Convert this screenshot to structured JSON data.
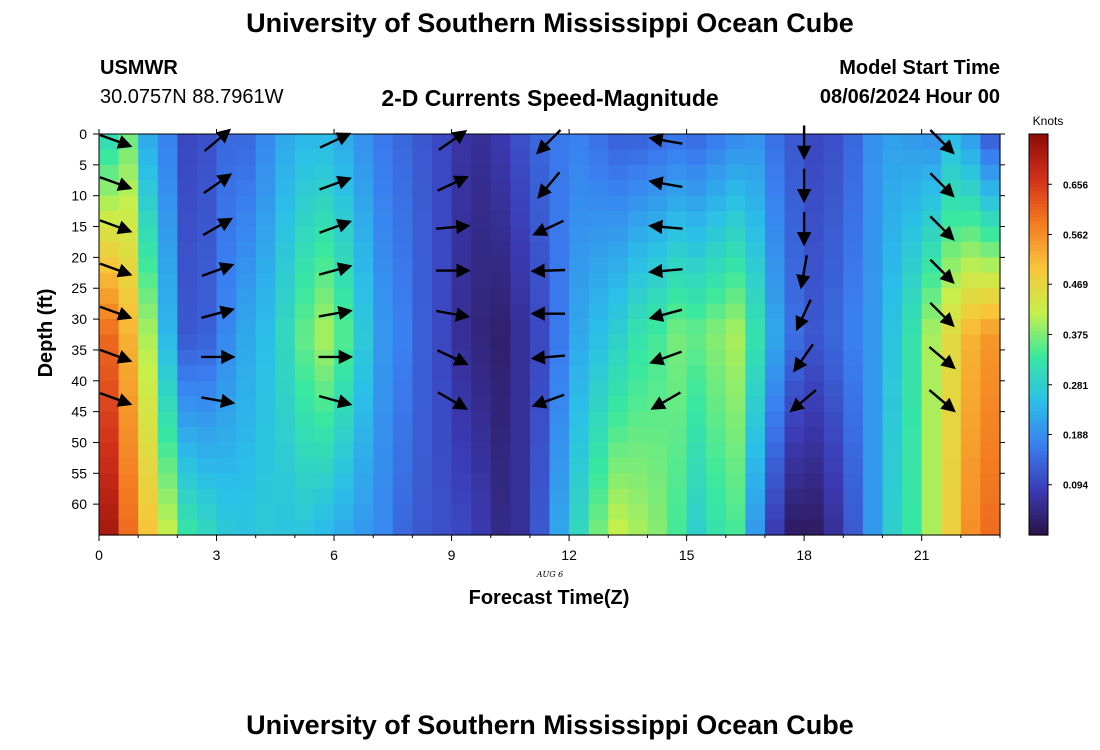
{
  "header": {
    "title": "University of Southern Mississippi Ocean Cube",
    "station": "USMWR",
    "coords": "30.0757N  88.7961W",
    "subtitle": "2-D Currents Speed-Magnitude",
    "model_start_label": "Model Start Time",
    "model_start_value": "08/06/2024 Hour 00"
  },
  "footer": {
    "title": "University of Southern Mississippi Ocean Cube"
  },
  "chart_data": {
    "type": "heatmap",
    "xlabel": "Forecast Time(Z)",
    "ylabel": "Depth (ft)",
    "date_label": "AUG 6",
    "x_range": [
      0,
      23
    ],
    "y_range": [
      0,
      65
    ],
    "x_ticks": [
      0,
      3,
      6,
      9,
      12,
      15,
      18,
      21
    ],
    "y_ticks": [
      0,
      5,
      10,
      15,
      20,
      25,
      30,
      35,
      40,
      45,
      50,
      55,
      60
    ],
    "colorbar": {
      "unit": "Knots",
      "range": [
        0.0,
        0.75
      ],
      "ticks": [
        "0.094",
        "0.188",
        "0.281",
        "0.375",
        "0.469",
        "0.562",
        "0.656"
      ],
      "colors": [
        "#2a1245",
        "#3b3bb5",
        "#3a7ef0",
        "#2bbfe8",
        "#39e8a0",
        "#c7f04a",
        "#f8c53a",
        "#f47a1f",
        "#d2301a",
        "#8c0c07"
      ]
    },
    "columns_hours": [
      0,
      0.5,
      1,
      1.5,
      2,
      2.5,
      3,
      3.5,
      4,
      4.5,
      5,
      5.5,
      6,
      6.5,
      7,
      7.5,
      8,
      8.5,
      9,
      9.5,
      10,
      10.5,
      11,
      11.5,
      12,
      12.5,
      13,
      13.5,
      14,
      14.5,
      15,
      15.5,
      16,
      16.5,
      17,
      17.5,
      18,
      18.5,
      19,
      19.5,
      20,
      20.5,
      21,
      21.5,
      22,
      22.5
    ],
    "speed_surface": [
      0.3,
      0.36,
      0.22,
      0.17,
      0.1,
      0.11,
      0.14,
      0.14,
      0.18,
      0.22,
      0.24,
      0.24,
      0.22,
      0.19,
      0.16,
      0.14,
      0.12,
      0.1,
      0.07,
      0.06,
      0.08,
      0.11,
      0.14,
      0.16,
      0.17,
      0.15,
      0.13,
      0.13,
      0.14,
      0.15,
      0.14,
      0.16,
      0.18,
      0.19,
      0.15,
      0.12,
      0.1,
      0.11,
      0.14,
      0.19,
      0.21,
      0.2,
      0.19,
      0.24,
      0.2,
      0.12
    ],
    "speed_mid": [
      0.6,
      0.52,
      0.4,
      0.24,
      0.12,
      0.13,
      0.18,
      0.22,
      0.25,
      0.3,
      0.36,
      0.4,
      0.35,
      0.27,
      0.2,
      0.17,
      0.13,
      0.1,
      0.06,
      0.04,
      0.03,
      0.06,
      0.1,
      0.16,
      0.22,
      0.25,
      0.28,
      0.32,
      0.34,
      0.37,
      0.36,
      0.38,
      0.4,
      0.32,
      0.22,
      0.15,
      0.12,
      0.14,
      0.17,
      0.2,
      0.26,
      0.32,
      0.4,
      0.46,
      0.52,
      0.55
    ],
    "speed_bottom": [
      0.72,
      0.6,
      0.5,
      0.42,
      0.33,
      0.3,
      0.27,
      0.26,
      0.27,
      0.26,
      0.26,
      0.24,
      0.22,
      0.2,
      0.18,
      0.14,
      0.12,
      0.11,
      0.1,
      0.08,
      0.05,
      0.06,
      0.12,
      0.22,
      0.3,
      0.37,
      0.42,
      0.4,
      0.38,
      0.34,
      0.28,
      0.32,
      0.34,
      0.2,
      0.08,
      0.02,
      0.02,
      0.06,
      0.12,
      0.2,
      0.28,
      0.33,
      0.4,
      0.48,
      0.56,
      0.6
    ],
    "vector_hours": [
      0,
      3,
      6,
      9,
      11.5,
      14.5,
      18,
      21.5
    ],
    "vector_depths": [
      0,
      7,
      14,
      21,
      28,
      35,
      42
    ],
    "vector_angles_deg": [
      [
        20,
        20,
        20,
        20,
        20,
        20,
        20
      ],
      [
        -40,
        -35,
        -30,
        -20,
        -15,
        0,
        10
      ],
      [
        -25,
        -20,
        -20,
        -15,
        -10,
        0,
        15
      ],
      [
        -35,
        -25,
        -5,
        0,
        10,
        25,
        30
      ],
      [
        135,
        130,
        155,
        178,
        180,
        175,
        160
      ],
      [
        190,
        190,
        185,
        175,
        165,
        160,
        150
      ],
      [
        90,
        90,
        90,
        100,
        115,
        125,
        140
      ],
      [
        45,
        45,
        45,
        45,
        45,
        40,
        40
      ]
    ]
  }
}
